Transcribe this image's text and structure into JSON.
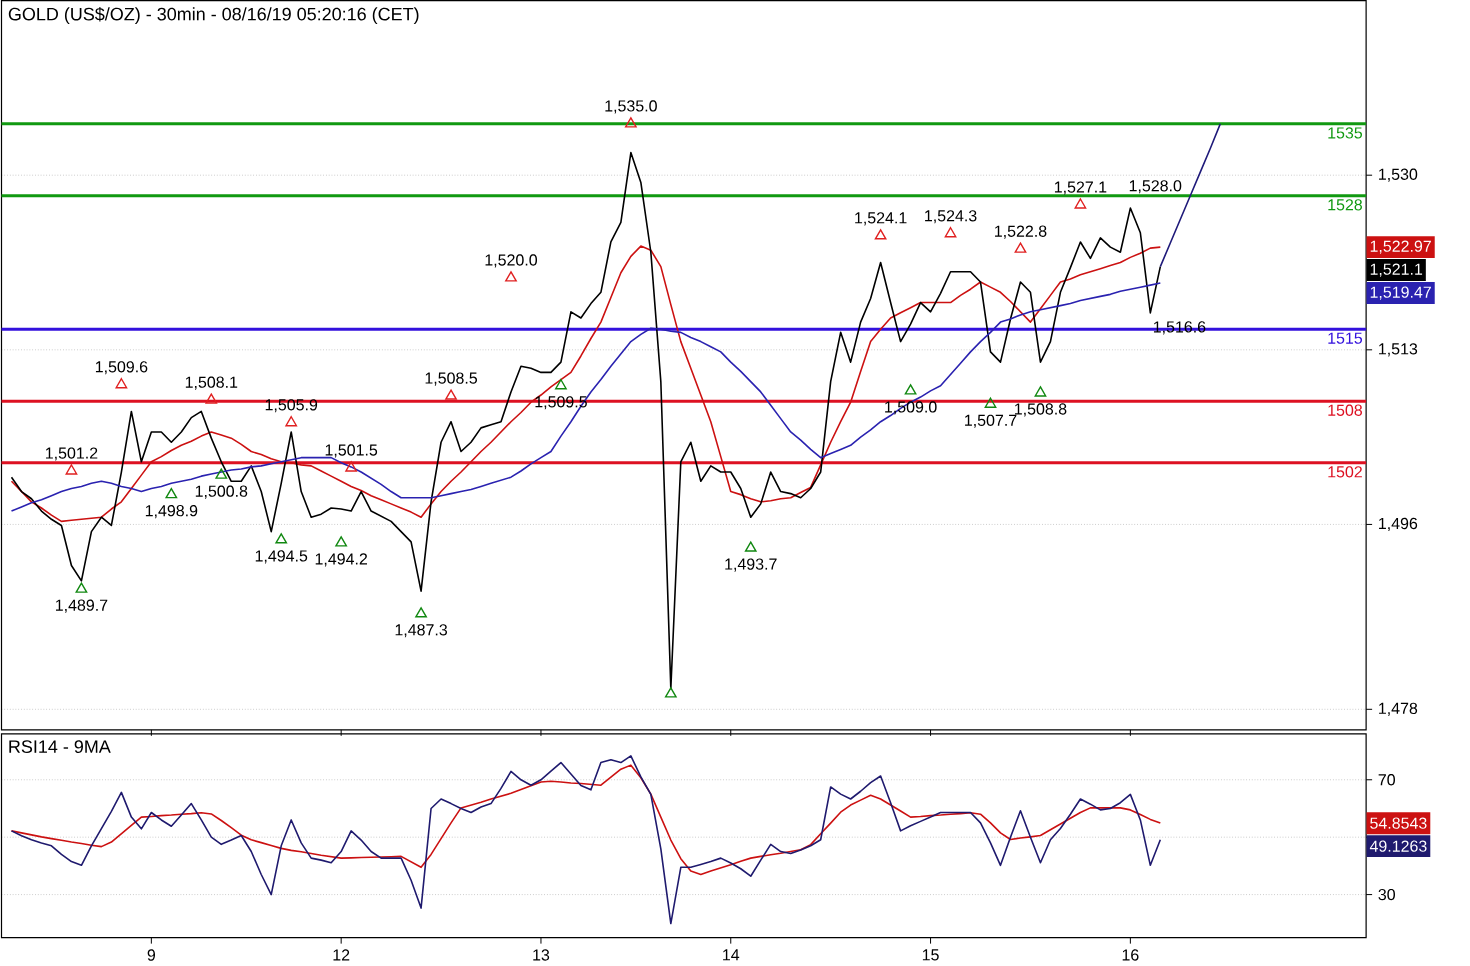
{
  "chart_data": [
    {
      "type": "line",
      "title": "GOLD (US$/OZ) - 30min - 08/16/19 05:20:16 (CET)",
      "categories": [
        null,
        null,
        null,
        null,
        null,
        null,
        null,
        null,
        null,
        null,
        null,
        null,
        null,
        null,
        "9",
        null,
        null,
        null,
        null,
        null,
        null,
        null,
        null,
        null,
        null,
        null,
        null,
        null,
        null,
        null,
        null,
        null,
        null,
        "12",
        null,
        null,
        null,
        null,
        null,
        null,
        null,
        null,
        null,
        null,
        null,
        null,
        null,
        null,
        null,
        null,
        null,
        null,
        null,
        "13",
        null,
        null,
        null,
        null,
        null,
        null,
        null,
        null,
        null,
        null,
        null,
        null,
        null,
        null,
        null,
        null,
        null,
        null,
        "14",
        null,
        null,
        null,
        null,
        null,
        null,
        null,
        null,
        null,
        null,
        null,
        null,
        null,
        null,
        null,
        null,
        null,
        null,
        null,
        "15",
        null,
        null,
        null,
        null,
        null,
        null,
        null,
        null,
        null,
        null,
        null,
        null,
        null,
        null,
        null,
        null,
        null,
        null,
        null,
        "16",
        null,
        null,
        null,
        null,
        null,
        null,
        null,
        null,
        null,
        null,
        null,
        null,
        null,
        null,
        null,
        null,
        null,
        null,
        null,
        null,
        null,
        null,
        null
      ],
      "ylim": [
        1476,
        1547
      ],
      "yticks": [
        {
          "value": 1478,
          "label": "1,478"
        },
        {
          "value": 1496,
          "label": "1,496"
        },
        {
          "value": 1513,
          "label": "1,513"
        },
        {
          "value": 1530,
          "label": "1,530"
        }
      ],
      "tick_labels": "y",
      "grid": "y",
      "series": [
        {
          "color": "#cc1111",
          "values": [
            1500.2,
            1499.2,
            1498.2,
            1497.6,
            1496.9,
            1496.3,
            1496.4,
            1496.5,
            1496.6,
            1496.7,
            1497.5,
            1498.2,
            1499.5,
            1500.8,
            1502.1,
            1502.6,
            1503.2,
            1503.7,
            1504.1,
            1504.6,
            1505.0,
            1504.7,
            1504.4,
            1503.8,
            1503.1,
            1502.8,
            1502.4,
            1502.1,
            1502.0,
            1501.8,
            1501.7,
            1501.2,
            1500.7,
            1500.2,
            1499.7,
            1499.3,
            1498.8,
            1498.4,
            1498.0,
            1497.6,
            1497.2,
            1496.7,
            1498.0,
            1499.2,
            1500.2,
            1501.1,
            1502.1,
            1503.1,
            1504.0,
            1505.0,
            1506.0,
            1506.9,
            1507.9,
            1508.6,
            1509.4,
            1510.1,
            1510.8,
            1512.4,
            1514.1,
            1515.7,
            1518.1,
            1520.5,
            1522.1,
            1523.1,
            1522.7,
            1521.1,
            1517.4,
            1513.8,
            1511.2,
            1508.6,
            1506.0,
            1502.6,
            1499.2,
            1498.9,
            1498.5,
            1498.2,
            1498.3,
            1498.5,
            1498.6,
            1499.1,
            1499.6,
            1501.8,
            1504.0,
            1506.0,
            1507.9,
            1510.9,
            1513.8,
            1515.0,
            1516.1,
            1516.6,
            1517.1,
            1517.6,
            1517.6,
            1517.6,
            1517.6,
            1518.3,
            1518.9,
            1519.6,
            1519.1,
            1518.6,
            1517.7,
            1516.7,
            1515.7,
            1517.0,
            1518.3,
            1519.6,
            1519.9,
            1520.3,
            1520.6,
            1520.9,
            1521.2,
            1521.5,
            1522.0,
            1522.4,
            1522.9,
            1523.0,
            null,
            null,
            null,
            null,
            null,
            null,
            null,
            null,
            null,
            null,
            null,
            null,
            null,
            null,
            null,
            null,
            null,
            null,
            null,
            null
          ]
        },
        {
          "color": "#000000",
          "values": [
            1500.6,
            1499.2,
            1498.5,
            1497.3,
            1496.5,
            1495.9,
            1492.0,
            1490.5,
            1495.3,
            1496.7,
            1495.9,
            1501.1,
            1507.0,
            1502.1,
            1505.0,
            1505.0,
            1504.0,
            1505.0,
            1506.4,
            1507.0,
            1504.4,
            1502.1,
            1500.2,
            1500.2,
            1501.7,
            1499.2,
            1495.3,
            1500.0,
            1505.0,
            1499.2,
            1496.7,
            1497.0,
            1497.6,
            1497.5,
            1497.3,
            1499.2,
            1497.3,
            1496.8,
            1496.3,
            1495.3,
            1494.3,
            1489.5,
            1498.2,
            1504.0,
            1506.0,
            1503.1,
            1504.0,
            1505.4,
            1505.7,
            1506.0,
            1508.9,
            1511.4,
            1511.2,
            1510.8,
            1510.8,
            1511.8,
            1516.7,
            1516.1,
            1517.5,
            1518.6,
            1523.5,
            1525.4,
            1532.2,
            1529.3,
            1522.5,
            1509.9,
            1480.0,
            1502.1,
            1504.0,
            1500.2,
            1501.7,
            1501.1,
            1501.1,
            1499.5,
            1496.7,
            1498.0,
            1501.1,
            1499.2,
            1499.0,
            1498.6,
            1499.5,
            1501.1,
            1509.9,
            1514.7,
            1511.8,
            1515.7,
            1518.0,
            1521.5,
            1517.6,
            1513.8,
            1515.5,
            1517.6,
            1516.7,
            1518.5,
            1520.6,
            1520.6,
            1520.6,
            1519.6,
            1512.8,
            1511.8,
            1516.0,
            1519.6,
            1518.6,
            1511.8,
            1513.8,
            1518.6,
            1521.0,
            1523.5,
            1521.9,
            1523.9,
            1523.0,
            1522.5,
            1526.8,
            1524.4,
            1516.6,
            1521.1,
            null,
            null,
            null,
            null,
            null,
            null,
            null,
            null,
            null,
            null,
            null,
            null,
            null,
            null,
            null,
            null,
            null,
            null,
            null,
            null
          ],
          "value_labels": [
            null,
            null,
            null,
            null,
            null,
            null,
            null,
            null,
            null,
            null,
            null,
            null,
            null,
            null,
            null,
            null,
            null,
            null,
            null,
            null,
            null,
            null,
            null,
            null,
            null,
            null,
            null,
            null,
            null,
            null,
            null,
            null,
            null,
            null,
            null,
            null,
            null,
            null,
            null,
            null,
            null,
            null,
            null,
            null,
            null,
            null,
            null,
            null,
            null,
            null,
            null,
            null,
            null,
            null,
            null,
            null,
            null,
            null,
            null,
            null,
            null,
            null,
            null,
            null,
            null,
            null,
            null,
            null,
            null,
            null,
            null,
            null,
            null,
            null,
            null,
            null,
            null,
            null,
            null,
            null,
            null,
            null,
            null,
            null,
            null,
            null,
            null,
            null,
            null,
            null,
            null,
            null,
            null,
            null,
            null,
            null,
            null,
            null,
            null,
            null,
            null,
            null,
            null,
            null,
            null,
            null,
            null,
            null,
            null,
            null,
            null,
            null,
            null,
            null,
            "1,516.6",
            null,
            null,
            null,
            null,
            null,
            null,
            null,
            null,
            null,
            null,
            null,
            null,
            null,
            null,
            null,
            null,
            null,
            null,
            null,
            null,
            null
          ]
        },
        {
          "color": "#2a22b0",
          "values": [
            1497.3,
            1497.7,
            1498.1,
            1498.4,
            1498.8,
            1499.2,
            1499.5,
            1499.7,
            1500.0,
            1500.2,
            1500.0,
            1499.7,
            1499.5,
            1499.2,
            1499.5,
            1499.7,
            1500.0,
            1500.2,
            1500.4,
            1500.7,
            1500.9,
            1501.1,
            1501.3,
            1501.4,
            1501.6,
            1501.7,
            1501.9,
            1502.1,
            1502.3,
            1502.5,
            1502.5,
            1502.5,
            1502.5,
            1502.0,
            1501.6,
            1501.1,
            1500.5,
            1499.9,
            1499.2,
            1498.6,
            1498.6,
            1498.6,
            1498.6,
            1498.8,
            1499.0,
            1499.2,
            1499.4,
            1499.7,
            1500.0,
            1500.3,
            1500.6,
            1501.2,
            1501.9,
            1502.5,
            1503.1,
            1504.6,
            1506.0,
            1507.5,
            1508.9,
            1510.1,
            1511.4,
            1512.6,
            1513.8,
            1514.5,
            1515.1,
            1515.0,
            1514.8,
            1514.7,
            1514.2,
            1513.8,
            1513.3,
            1512.8,
            1511.8,
            1510.9,
            1509.9,
            1508.9,
            1507.6,
            1506.3,
            1505.0,
            1504.2,
            1503.3,
            1502.5,
            1502.9,
            1503.3,
            1503.7,
            1504.5,
            1505.2,
            1506.0,
            1506.6,
            1507.3,
            1507.9,
            1508.4,
            1509.0,
            1509.5,
            1510.6,
            1511.7,
            1512.8,
            1513.8,
            1514.7,
            1515.7,
            1516.0,
            1516.4,
            1516.7,
            1516.9,
            1517.1,
            1517.3,
            1517.5,
            1517.8,
            1518.0,
            1518.2,
            1518.4,
            1518.7,
            1518.9,
            1519.1,
            1519.3,
            1519.5,
            null,
            null,
            null,
            null,
            null,
            null,
            null,
            null,
            null,
            null,
            null,
            null,
            null,
            null,
            null,
            null,
            null,
            null,
            null,
            null
          ]
        },
        {
          "type": "scatter",
          "marker": "triangle",
          "color": "#e02020",
          "values": [
            null,
            null,
            null,
            null,
            null,
            null,
            1501.2,
            null,
            null,
            null,
            null,
            1509.6,
            null,
            null,
            null,
            null,
            null,
            null,
            null,
            null,
            1508.1,
            null,
            null,
            null,
            null,
            null,
            null,
            null,
            1505.9,
            null,
            null,
            null,
            null,
            null,
            1501.5,
            null,
            null,
            null,
            null,
            null,
            null,
            null,
            null,
            null,
            1508.5,
            null,
            null,
            null,
            null,
            null,
            1520.0,
            null,
            null,
            null,
            null,
            null,
            null,
            null,
            null,
            null,
            null,
            null,
            1535.0,
            null,
            null,
            null,
            null,
            null,
            null,
            null,
            null,
            null,
            null,
            null,
            null,
            null,
            null,
            null,
            null,
            null,
            null,
            null,
            null,
            null,
            null,
            null,
            null,
            1524.1,
            null,
            null,
            null,
            null,
            null,
            null,
            1524.3,
            null,
            null,
            null,
            null,
            null,
            null,
            1522.8,
            null,
            null,
            null,
            null,
            null,
            1527.1,
            null,
            null,
            null,
            null,
            null,
            null,
            null,
            null,
            null,
            null,
            null,
            null,
            null,
            null,
            null,
            null,
            null,
            null,
            null,
            null,
            null,
            null,
            null,
            null,
            null,
            null,
            null,
            null
          ]
        },
        {
          "type": "scatter",
          "marker": "triangle",
          "color": "#118811",
          "values": [
            null,
            null,
            null,
            null,
            null,
            null,
            null,
            1489.7,
            null,
            null,
            null,
            null,
            null,
            null,
            null,
            null,
            1498.9,
            null,
            null,
            null,
            null,
            1500.8,
            null,
            null,
            null,
            null,
            null,
            1494.5,
            null,
            null,
            null,
            null,
            null,
            1494.2,
            null,
            null,
            null,
            null,
            null,
            null,
            null,
            1487.3,
            null,
            null,
            null,
            null,
            null,
            null,
            null,
            null,
            null,
            null,
            null,
            null,
            null,
            1509.5,
            null,
            null,
            null,
            null,
            null,
            null,
            null,
            null,
            null,
            null,
            1479.5,
            null,
            null,
            null,
            null,
            null,
            null,
            null,
            1493.7,
            null,
            null,
            null,
            null,
            null,
            null,
            null,
            null,
            null,
            null,
            null,
            null,
            null,
            null,
            null,
            1509.0,
            null,
            null,
            null,
            null,
            null,
            null,
            null,
            1507.7,
            null,
            null,
            null,
            null,
            1508.8,
            null,
            null,
            null,
            null,
            null,
            null,
            null,
            null,
            null,
            null,
            null,
            null,
            null,
            null,
            null,
            null,
            null,
            null,
            null,
            null,
            null,
            null,
            null,
            null,
            null,
            null,
            null,
            null,
            null,
            null,
            null,
            null
          ]
        },
        {
          "color": "#1f1a7a",
          "values": [
            null,
            null,
            null,
            null,
            null,
            null,
            null,
            null,
            null,
            null,
            null,
            null,
            null,
            null,
            null,
            null,
            null,
            null,
            null,
            null,
            null,
            null,
            null,
            null,
            null,
            null,
            null,
            null,
            null,
            null,
            null,
            null,
            null,
            null,
            null,
            null,
            null,
            null,
            null,
            null,
            null,
            null,
            null,
            null,
            null,
            null,
            null,
            null,
            null,
            null,
            null,
            null,
            null,
            null,
            null,
            null,
            null,
            null,
            null,
            null,
            null,
            null,
            null,
            null,
            null,
            null,
            null,
            null,
            null,
            null,
            null,
            null,
            null,
            null,
            null,
            null,
            null,
            null,
            null,
            null,
            null,
            null,
            null,
            null,
            null,
            null,
            null,
            null,
            null,
            null,
            null,
            null,
            null,
            null,
            null,
            null,
            null,
            null,
            null,
            null,
            null,
            null,
            null,
            null,
            null,
            null,
            null,
            null,
            null,
            null,
            null,
            null,
            null,
            null,
            null,
            1521.1,
            1523.4,
            1525.7,
            1528.0,
            1530.3,
            1532.6,
            1535.0,
            null,
            null,
            null,
            null,
            null,
            null,
            null,
            null,
            null,
            null,
            null,
            null,
            null,
            null
          ],
          "value_labels": [
            null,
            null,
            null,
            null,
            null,
            null,
            null,
            null,
            null,
            null,
            null,
            null,
            null,
            null,
            null,
            null,
            null,
            null,
            null,
            null,
            null,
            null,
            null,
            null,
            null,
            null,
            null,
            null,
            null,
            null,
            null,
            null,
            null,
            null,
            null,
            null,
            null,
            null,
            null,
            null,
            null,
            null,
            null,
            null,
            null,
            null,
            null,
            null,
            null,
            null,
            null,
            null,
            null,
            null,
            null,
            null,
            null,
            null,
            null,
            null,
            null,
            null,
            null,
            null,
            null,
            null,
            null,
            null,
            null,
            null,
            null,
            null,
            null,
            null,
            null,
            null,
            null,
            null,
            null,
            null,
            null,
            null,
            null,
            null,
            null,
            null,
            null,
            null,
            null,
            null,
            null,
            null,
            null,
            null,
            null,
            null,
            null,
            null,
            null,
            null,
            null,
            null,
            null,
            null,
            null,
            null,
            null,
            null,
            null,
            null,
            null,
            null,
            null,
            null,
            null,
            null,
            null,
            null,
            "1,528.0",
            null,
            null,
            null,
            null,
            null,
            null,
            null,
            null,
            null,
            null,
            null,
            null,
            null,
            null,
            null,
            null,
            null
          ]
        }
      ],
      "ref_lines": [
        {
          "axis": "y",
          "value": 1535,
          "label": "1535",
          "color": "#119911"
        },
        {
          "axis": "y",
          "value": 1528,
          "label": "1528",
          "color": "#119911"
        },
        {
          "axis": "y",
          "value": 1515,
          "label": "1515",
          "color": "#3311dd"
        },
        {
          "axis": "y",
          "value": 1508,
          "label": "1508",
          "color": "#dd1122"
        },
        {
          "axis": "y",
          "value": 1502,
          "label": "1502",
          "color": "#dd1122"
        }
      ],
      "annotations": [
        {
          "text": "1,501.2",
          "y": 1501.2
        },
        {
          "text": "1,509.6",
          "y": 1509.6
        },
        {
          "text": "1,508.1",
          "y": 1508.1
        },
        {
          "text": "1,505.9",
          "y": 1505.9
        },
        {
          "text": "1,501.5",
          "y": 1501.5
        },
        {
          "text": "1,508.5",
          "y": 1508.5
        },
        {
          "text": "1,520.0",
          "y": 1520.0
        },
        {
          "text": "1,535.0",
          "y": 1535.0
        },
        {
          "text": "1,524.1",
          "y": 1524.1
        },
        {
          "text": "1,524.3",
          "y": 1524.3
        },
        {
          "text": "1,522.8",
          "y": 1522.8
        },
        {
          "text": "1,527.1",
          "y": 1527.1
        },
        {
          "text": "1,489.7",
          "y": 1489.7
        },
        {
          "text": "1,498.9",
          "y": 1498.9
        },
        {
          "text": "1,500.8",
          "y": 1500.8
        },
        {
          "text": "1,494.5",
          "y": 1494.5
        },
        {
          "text": "1,494.2",
          "y": 1494.2
        },
        {
          "text": "1,487.3",
          "y": 1487.3
        },
        {
          "text": "1,509.5",
          "y": 1509.5
        },
        {
          "text": "1,493.7",
          "y": 1493.7
        },
        {
          "text": "1,509.0",
          "y": 1509.0
        },
        {
          "text": "1,507.7",
          "y": 1507.7
        },
        {
          "text": "1,508.8",
          "y": 1508.8
        },
        "1,522.97",
        "1,521.1",
        "1,519.47"
      ]
    },
    {
      "type": "line",
      "title": "RSI14 - 9MA",
      "categories": [
        null,
        null,
        null,
        null,
        null,
        null,
        null,
        null,
        null,
        null,
        null,
        null,
        null,
        null,
        "9",
        null,
        null,
        null,
        null,
        null,
        null,
        null,
        null,
        null,
        null,
        null,
        null,
        null,
        null,
        null,
        null,
        null,
        null,
        "12",
        null,
        null,
        null,
        null,
        null,
        null,
        null,
        null,
        null,
        null,
        null,
        null,
        null,
        null,
        null,
        null,
        null,
        null,
        null,
        "13",
        null,
        null,
        null,
        null,
        null,
        null,
        null,
        null,
        null,
        null,
        null,
        null,
        null,
        null,
        null,
        null,
        null,
        null,
        "14",
        null,
        null,
        null,
        null,
        null,
        null,
        null,
        null,
        null,
        null,
        null,
        null,
        null,
        null,
        null,
        null,
        null,
        null,
        null,
        "15",
        null,
        null,
        null,
        null,
        null,
        null,
        null,
        null,
        null,
        null,
        null,
        null,
        null,
        null,
        null,
        null,
        null,
        null,
        null,
        "16",
        null,
        null,
        null,
        null,
        null,
        null,
        null,
        null,
        null,
        null,
        null,
        null,
        null,
        null,
        null,
        null,
        null,
        null,
        null,
        null,
        null,
        null,
        null
      ],
      "ylim": [
        15,
        86
      ],
      "yticks": [
        30,
        {
          "value": 50,
          "label": null
        },
        70
      ],
      "grid": "y",
      "series": [
        {
          "color": "#cc1111",
          "values": [
            52.2,
            51.5,
            50.8,
            50.1,
            49.5,
            48.9,
            48.3,
            47.8,
            47.2,
            46.7,
            48.3,
            51.2,
            54.1,
            57.0,
            57.2,
            57.5,
            57.7,
            58.0,
            58.2,
            58.5,
            58.1,
            55.8,
            53.3,
            50.7,
            49.1,
            48.1,
            47.1,
            46.1,
            45.4,
            44.9,
            44.3,
            43.7,
            43.2,
            42.7,
            42.8,
            42.9,
            43.0,
            43.1,
            43.2,
            43.3,
            41.4,
            39.5,
            44.0,
            49.5,
            55.0,
            60.2,
            61.2,
            62.2,
            63.3,
            64.3,
            65.3,
            66.6,
            67.9,
            69.2,
            69.5,
            69.2,
            68.9,
            68.7,
            68.4,
            68.1,
            70.9,
            73.7,
            75.1,
            70.7,
            65.0,
            57.0,
            49.0,
            42.5,
            38.2,
            37.0,
            38.2,
            39.3,
            40.4,
            41.6,
            42.7,
            43.3,
            43.9,
            44.4,
            45.0,
            45.6,
            47.4,
            51.2,
            54.9,
            58.7,
            61.2,
            62.9,
            64.6,
            63.3,
            61.2,
            59.1,
            57.0,
            57.2,
            57.5,
            57.7,
            58.0,
            58.2,
            58.5,
            58.0,
            55.0,
            51.5,
            49.2,
            49.7,
            50.1,
            50.6,
            52.6,
            54.6,
            56.6,
            58.6,
            60.2,
            60.2,
            60.2,
            60.2,
            59.5,
            57.9,
            56.2,
            54.9,
            null,
            null,
            null,
            null,
            null,
            null,
            null,
            null,
            null,
            null,
            null,
            null,
            null,
            null,
            null,
            null,
            null,
            null,
            null,
            null
          ]
        },
        {
          "color": "#1f1a6e",
          "values": [
            52.2,
            50.5,
            49.1,
            48.0,
            47.0,
            44.0,
            41.5,
            40.2,
            47.0,
            53.0,
            59.0,
            65.6,
            57.0,
            52.9,
            58.6,
            56.0,
            53.8,
            57.7,
            61.7,
            56.0,
            50.0,
            47.5,
            49.0,
            50.6,
            45.0,
            37.0,
            30.0,
            47.0,
            56.0,
            48.0,
            42.7,
            42.0,
            41.1,
            45.0,
            52.2,
            49.0,
            45.0,
            42.7,
            42.7,
            42.7,
            35.0,
            25.3,
            60.0,
            63.3,
            61.7,
            60.0,
            58.6,
            60.5,
            61.7,
            67.0,
            72.9,
            70.0,
            68.1,
            70.0,
            73.0,
            76.0,
            72.0,
            68.0,
            66.5,
            76.0,
            77.0,
            76.0,
            78.3,
            71.0,
            64.9,
            45.9,
            19.9,
            39.5,
            39.5,
            40.5,
            41.5,
            42.7,
            41.0,
            39.0,
            36.4,
            42.0,
            47.5,
            45.0,
            44.3,
            45.5,
            47.0,
            49.1,
            67.5,
            65.0,
            63.3,
            66.0,
            69.0,
            71.3,
            62.0,
            52.2,
            54.0,
            55.5,
            57.0,
            58.6,
            58.6,
            58.6,
            58.6,
            55.0,
            48.0,
            40.2,
            50.0,
            59.2,
            50.0,
            41.1,
            49.1,
            53.0,
            58.0,
            63.3,
            61.5,
            59.5,
            60.0,
            62.0,
            64.9,
            56.0,
            40.2,
            49.1,
            null,
            null,
            null,
            null,
            null,
            null,
            null,
            null,
            null,
            null,
            null,
            null,
            null,
            null,
            null,
            null,
            null,
            null,
            null,
            null
          ]
        }
      ],
      "annotations": [
        "54.8543",
        "49.1263"
      ]
    }
  ]
}
